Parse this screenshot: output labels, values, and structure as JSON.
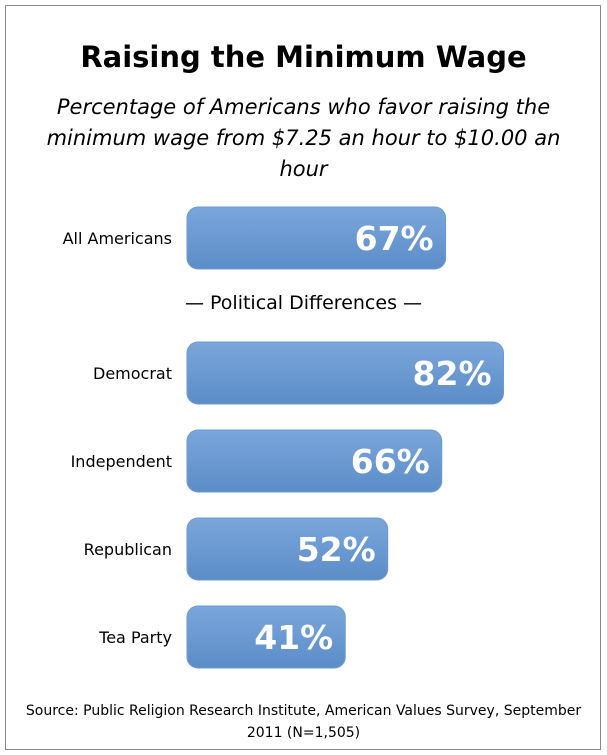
{
  "chart_data": {
    "type": "bar",
    "title": "Raising the Minimum Wage",
    "subtitle": "Percentage of Americans who favor raising the minimum wage from $7.25 an hour to $10.00 an hour",
    "categories": [
      "All Americans",
      "Democrat",
      "Independent",
      "Republican",
      "Tea Party"
    ],
    "values": [
      67,
      82,
      66,
      52,
      41
    ],
    "value_labels": [
      "67%",
      "82%",
      "66%",
      "52%",
      "41%"
    ],
    "section_label": "— Political Differences —",
    "orientation": "horizontal",
    "bar_color": "#6b9bd2",
    "source": "Source: Public Religion Research Institute, American Values Survey, September 2011 (N=1,505)"
  }
}
